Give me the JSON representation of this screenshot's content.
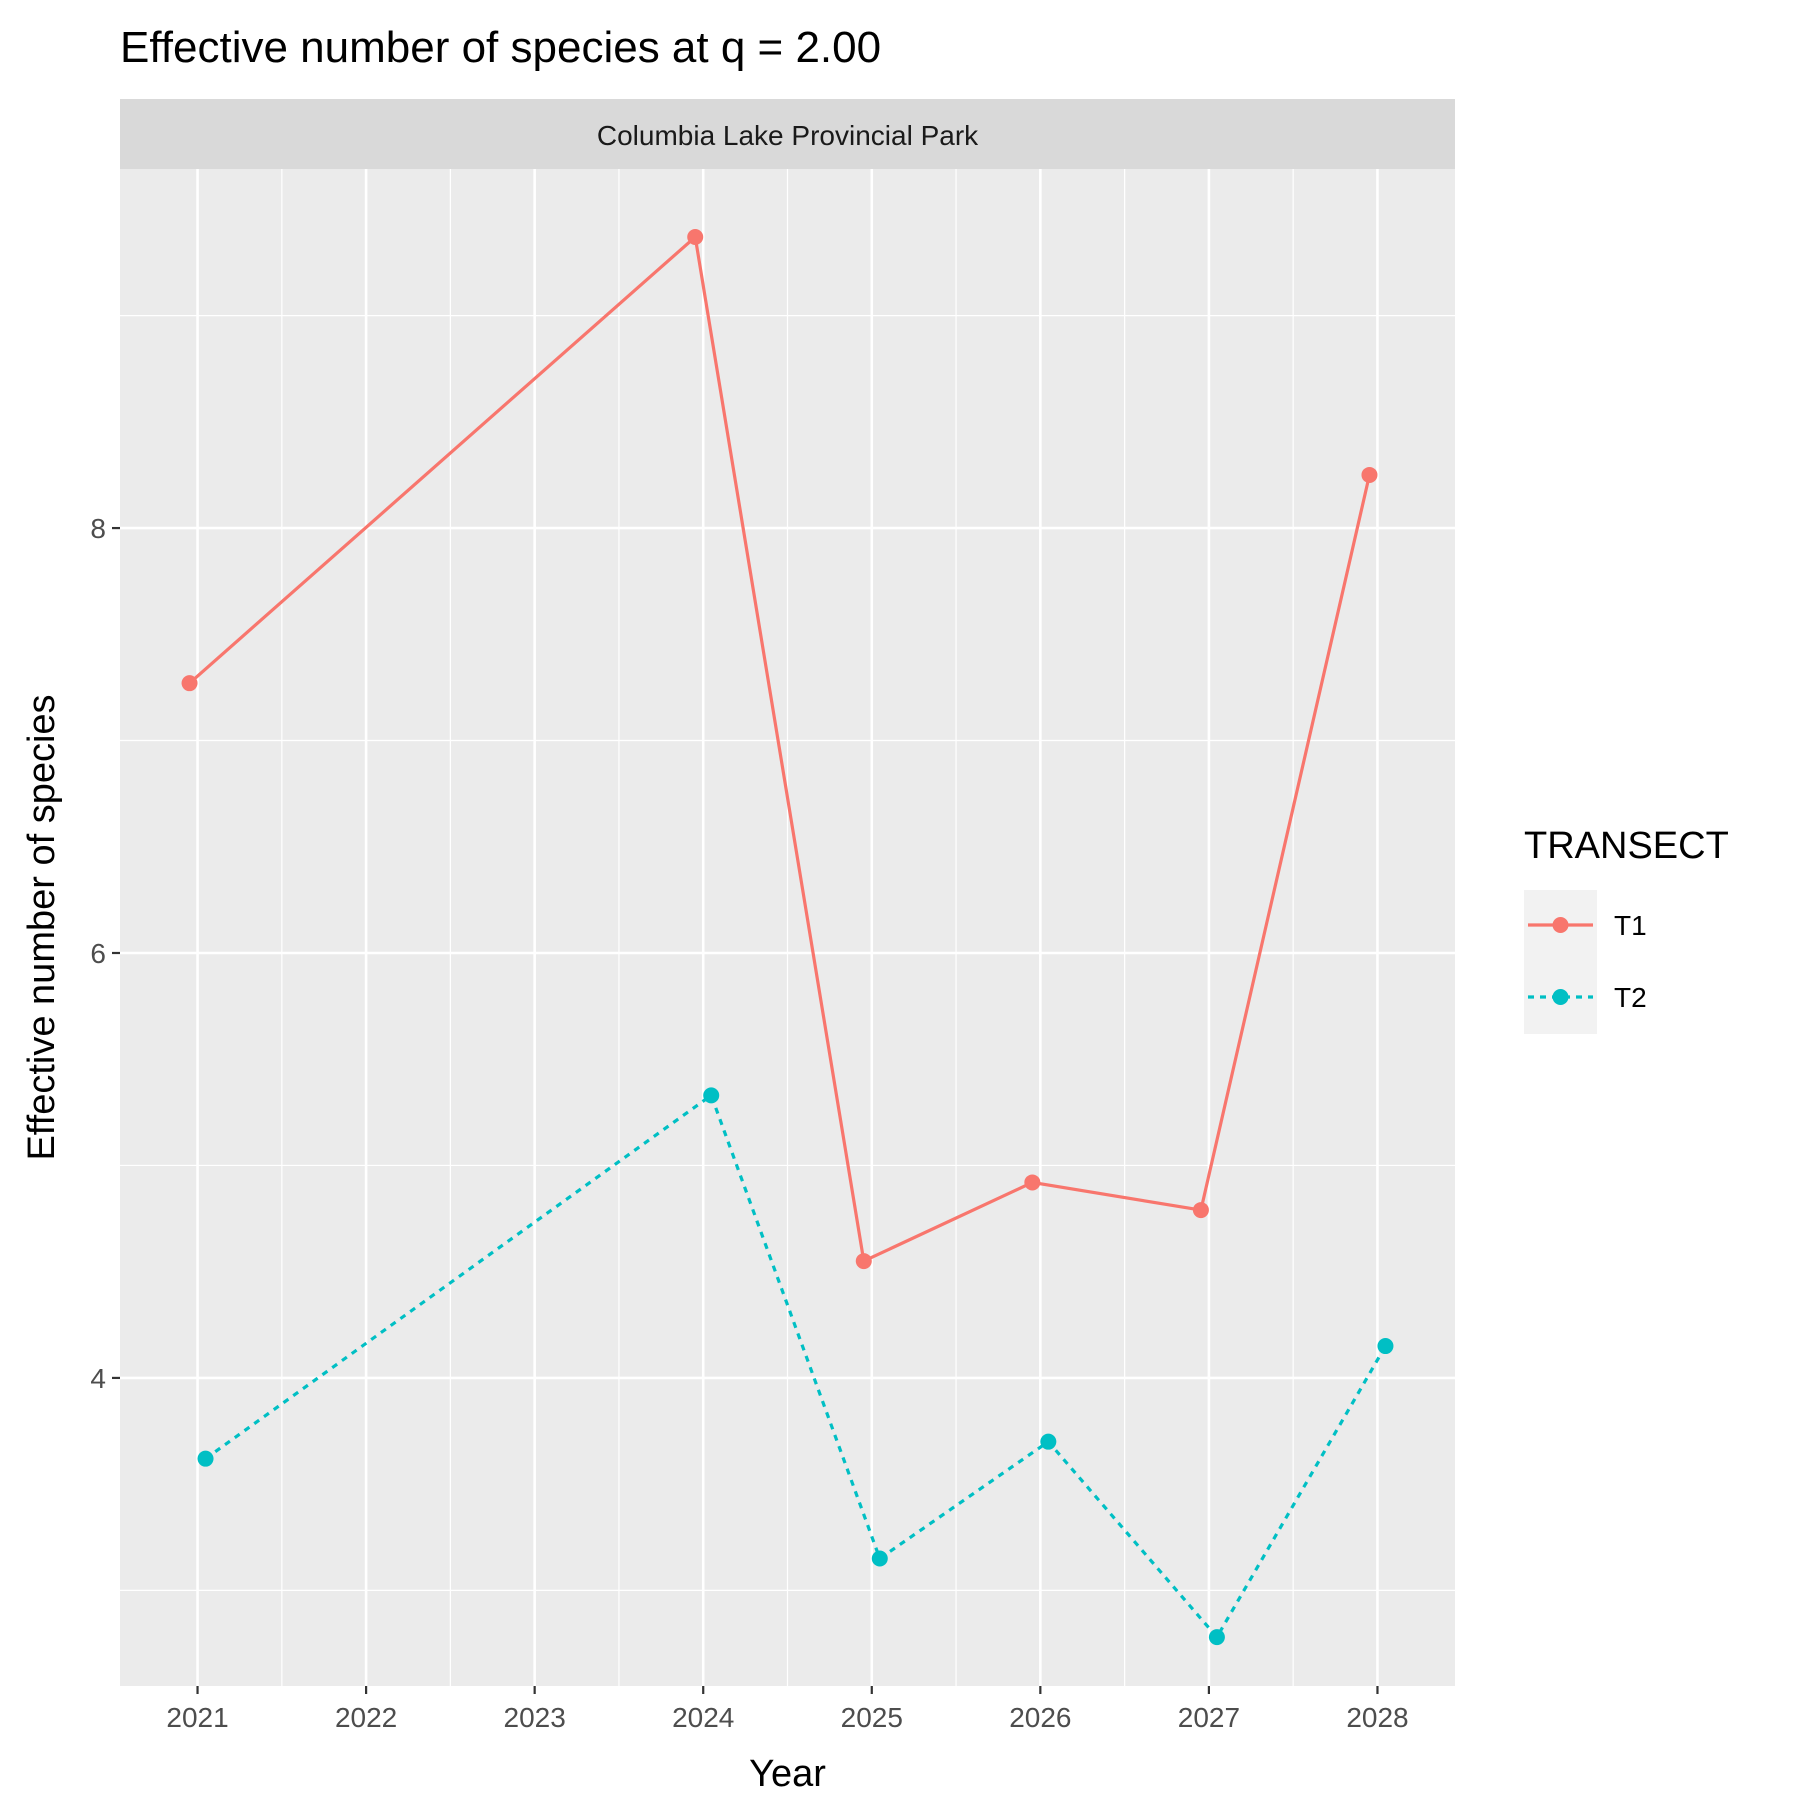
{
  "chart_data": {
    "type": "line",
    "title": "Effective number of species at q = 2.00",
    "facet": "Columbia Lake Provincial Park",
    "xlabel": "Year",
    "ylabel": "Effective number of species",
    "x": [
      2021,
      2022,
      2023,
      2024,
      2025,
      2026,
      2027,
      2028
    ],
    "x_tick_labels": [
      "2021",
      "2022",
      "2023",
      "2024",
      "2025",
      "2026",
      "2027",
      "2028"
    ],
    "y_ticks": [
      4,
      6,
      8
    ],
    "y_tick_labels": [
      "4",
      "6",
      "8"
    ],
    "xlim": [
      2020.54,
      2028.46
    ],
    "ylim": [
      2.55,
      9.69
    ],
    "grid": true,
    "legend_title": "TRANSECT",
    "legend_position": "right",
    "series": [
      {
        "name": "T1",
        "color": "#F8766D",
        "linetype": "solid",
        "points": [
          {
            "x": 2021,
            "y": 7.27
          },
          {
            "x": 2024,
            "y": 9.37
          },
          {
            "x": 2025,
            "y": 4.55
          },
          {
            "x": 2026,
            "y": 4.92
          },
          {
            "x": 2027,
            "y": 4.79
          },
          {
            "x": 2028,
            "y": 8.25
          }
        ]
      },
      {
        "name": "T2",
        "color": "#00BFC4",
        "linetype": "dashed",
        "points": [
          {
            "x": 2021,
            "y": 3.62
          },
          {
            "x": 2024,
            "y": 5.33
          },
          {
            "x": 2025,
            "y": 3.15
          },
          {
            "x": 2026,
            "y": 3.7
          },
          {
            "x": 2027,
            "y": 2.78
          },
          {
            "x": 2028,
            "y": 4.15
          }
        ]
      }
    ]
  }
}
